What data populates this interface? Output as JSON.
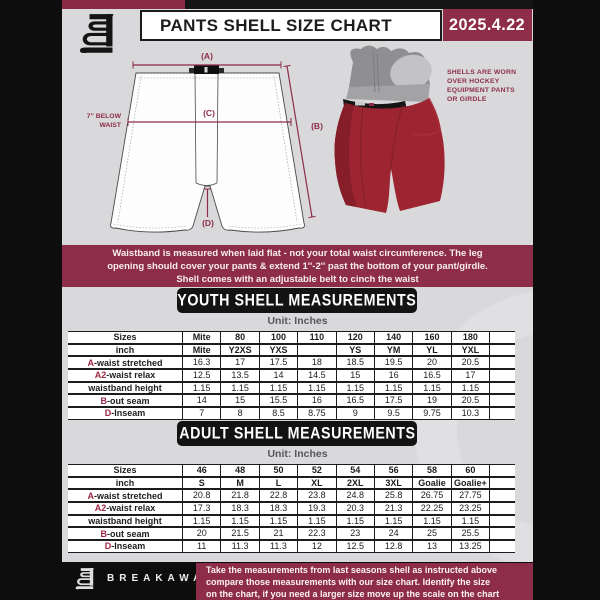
{
  "header": {
    "title": "PANTS SHELL SIZE CHART",
    "date": "2025.4.22"
  },
  "diagram": {
    "label_a": "(A)",
    "label_b": "(B)",
    "label_c": "(C)",
    "label_d": "(D)",
    "waist_note_line1": "7'' BELOW",
    "waist_note_line2": "WAIST",
    "side_note_lines": [
      "SHELLS ARE WORN",
      "OVER HOCKEY",
      "EQUIPMENT PANTS",
      "OR GIRDLE"
    ]
  },
  "notice_lines": [
    "Waistband is measured when laid flat - not your total waist circumference. The leg",
    "opening should cover your pants & extend 1''-2'' past the bottom of your pant/girdle.",
    "Shell comes with an adjustable belt to cinch the waist"
  ],
  "youth": {
    "heading": "YOUTH SHELL MEASUREMENTS",
    "unit": "Unit: Inches"
  },
  "adult": {
    "heading": "ADULT SHELL MEASUREMENTS",
    "unit": "Unit: Inches"
  },
  "youth_table": {
    "rows": [
      {
        "prefix": "",
        "label": "Sizes",
        "bold": true,
        "values": [
          "Mite",
          "80",
          "100",
          "110",
          "120",
          "140",
          "160",
          "180"
        ]
      },
      {
        "prefix": "",
        "label": "inch",
        "bold": true,
        "values": [
          "Mite",
          "Y2XS",
          "YXS",
          "",
          "YS",
          "YM",
          "YL",
          "YXL"
        ]
      },
      {
        "prefix": "A",
        "label": "-waist stretched",
        "bold": false,
        "values": [
          "16.3",
          "17",
          "17.5",
          "18",
          "18.5",
          "19.5",
          "20",
          "20.5"
        ]
      },
      {
        "prefix": "A2",
        "label": "-waist relax",
        "bold": false,
        "values": [
          "12.5",
          "13.5",
          "14",
          "14.5",
          "15",
          "16",
          "16.5",
          "17"
        ]
      },
      {
        "prefix": "",
        "label": "waistband height",
        "bold": false,
        "values": [
          "1.15",
          "1.15",
          "1.15",
          "1.15",
          "1.15",
          "1.15",
          "1.15",
          "1.15"
        ]
      },
      {
        "prefix": "B",
        "label": "-out seam",
        "bold": false,
        "values": [
          "14",
          "15",
          "15.5",
          "16",
          "16.5",
          "17.5",
          "19",
          "20.5"
        ]
      },
      {
        "prefix": "D",
        "label": "-Inseam",
        "bold": false,
        "values": [
          "7",
          "8",
          "8.5",
          "8.75",
          "9",
          "9.5",
          "9.75",
          "10.3"
        ]
      }
    ]
  },
  "adult_table": {
    "rows": [
      {
        "prefix": "",
        "label": "Sizes",
        "bold": true,
        "values": [
          "46",
          "48",
          "50",
          "52",
          "54",
          "56",
          "58",
          "60"
        ]
      },
      {
        "prefix": "",
        "label": "inch",
        "bold": true,
        "values": [
          "S",
          "M",
          "L",
          "XL",
          "2XL",
          "3XL",
          "Goalie",
          "Goalie+"
        ]
      },
      {
        "prefix": "A",
        "label": "-waist stretched",
        "bold": false,
        "values": [
          "20.8",
          "21.8",
          "22.8",
          "23.8",
          "24.8",
          "25.8",
          "26.75",
          "27.75"
        ]
      },
      {
        "prefix": "A2",
        "label": "-waist relax",
        "bold": false,
        "values": [
          "17.3",
          "18.3",
          "18.3",
          "19.3",
          "20.3",
          "21.3",
          "22.25",
          "23.25"
        ]
      },
      {
        "prefix": "",
        "label": "waistband height",
        "bold": false,
        "values": [
          "1.15",
          "1.15",
          "1.15",
          "1.15",
          "1.15",
          "1.15",
          "1.15",
          "1.15"
        ]
      },
      {
        "prefix": "B",
        "label": "-out seam",
        "bold": false,
        "values": [
          "20",
          "21.5",
          "21",
          "22.3",
          "23",
          "24",
          "25",
          "25.5"
        ]
      },
      {
        "prefix": "D",
        "label": "-Inseam",
        "bold": false,
        "values": [
          "11",
          "11.3",
          "11.3",
          "12",
          "12.5",
          "12.8",
          "13",
          "13.25"
        ]
      }
    ]
  },
  "footer": {
    "brand": "BREAKAWAY",
    "note_lines": [
      "Take the measurements from last seasons shell as instructed above",
      "compare those measurements with our size chart. Identify the size",
      "on the chart, if you need a larger size move up the scale on the chart"
    ]
  },
  "colors": {
    "maroon": "#8e2d4a",
    "page_bg": "#d9d9db",
    "shell_red": "#9c2531",
    "table_line": "#1c1c1c",
    "footer_bg": "#0d0d0d"
  }
}
